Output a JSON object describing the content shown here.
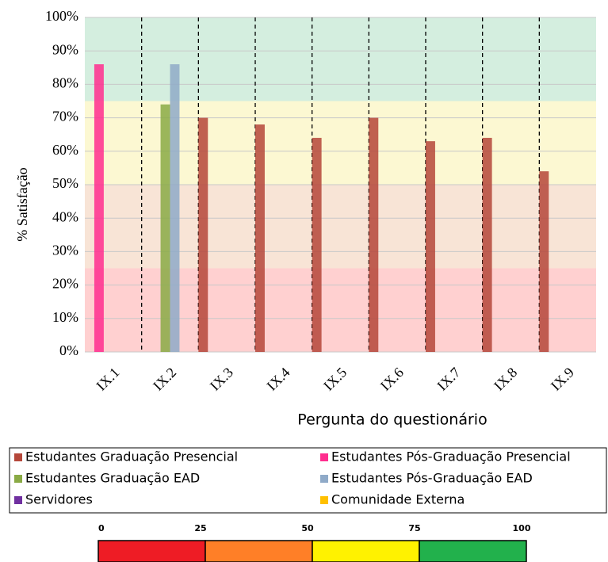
{
  "chart_data": {
    "type": "bar",
    "y_label": "% Satisfação",
    "x_label": "Pergunta do questionário",
    "categories": [
      "IX.1",
      "IX.2",
      "IX.3",
      "IX.4",
      "IX.5",
      "IX.6",
      "IX.7",
      "IX.8",
      "IX.9"
    ],
    "series": [
      {
        "name": "Estudantes Graduação Presencial",
        "color": "#b5473a",
        "values": [
          null,
          null,
          70,
          68,
          64,
          70,
          63,
          64,
          54
        ]
      },
      {
        "name": "Estudantes Pós-Graduação Presencial",
        "color": "#ff2d8e",
        "values": [
          86,
          null,
          null,
          null,
          null,
          null,
          null,
          null,
          null
        ]
      },
      {
        "name": "Estudantes Graduação EAD",
        "color": "#8aaa45",
        "values": [
          null,
          74,
          null,
          null,
          null,
          null,
          null,
          null,
          null
        ]
      },
      {
        "name": "Estudantes Pós-Graduação EAD",
        "color": "#8faac8",
        "values": [
          null,
          86,
          null,
          null,
          null,
          null,
          null,
          null,
          null
        ]
      },
      {
        "name": "Servidores",
        "color": "#7030a0",
        "values": [
          null,
          null,
          null,
          null,
          null,
          null,
          null,
          null,
          null
        ]
      },
      {
        "name": "Comunidade Externa",
        "color": "#ffc000",
        "values": [
          null,
          null,
          null,
          null,
          null,
          null,
          null,
          null,
          null
        ]
      }
    ],
    "ylim": [
      0,
      100
    ],
    "yticks": [
      {
        "value": 0,
        "label": "0%"
      },
      {
        "value": 10,
        "label": "10%"
      },
      {
        "value": 20,
        "label": "20%"
      },
      {
        "value": 30,
        "label": "30%"
      },
      {
        "value": 40,
        "label": "40%"
      },
      {
        "value": 50,
        "label": "50%"
      },
      {
        "value": 60,
        "label": "60%"
      },
      {
        "value": 70,
        "label": "70%"
      },
      {
        "value": 80,
        "label": "80%"
      },
      {
        "value": 90,
        "label": "90%"
      },
      {
        "value": 100,
        "label": "100%"
      }
    ],
    "grid": true,
    "bands": [
      {
        "from": 0,
        "to": 25,
        "color": "#ffd0d0"
      },
      {
        "from": 25,
        "to": 50,
        "color": "#f8e4d6"
      },
      {
        "from": 50,
        "to": 75,
        "color": "#fcf8d2"
      },
      {
        "from": 75,
        "to": 100,
        "color": "#d4eedf"
      }
    ]
  },
  "scale": {
    "ticks": [
      0,
      25,
      50,
      75,
      100
    ],
    "colors": [
      "#ee1c25",
      "#ff7f27",
      "#fff200",
      "#22b14c"
    ]
  }
}
